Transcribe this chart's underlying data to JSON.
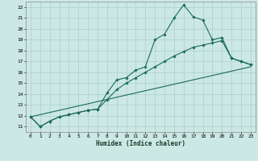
{
  "xlabel": "Humidex (Indice chaleur)",
  "background_color": "#cce8e4",
  "grid_color": "#aacfcb",
  "line_color": "#1a6b5a",
  "xlim": [
    -0.5,
    23.5
  ],
  "ylim": [
    10.5,
    22.5
  ],
  "xticks": [
    0,
    1,
    2,
    3,
    4,
    5,
    6,
    7,
    8,
    9,
    10,
    11,
    12,
    13,
    14,
    15,
    16,
    17,
    18,
    19,
    20,
    21,
    22,
    23
  ],
  "yticks": [
    11,
    12,
    13,
    14,
    15,
    16,
    17,
    18,
    19,
    20,
    21,
    22
  ],
  "line1_x": [
    0,
    1,
    2,
    3,
    4,
    5,
    6,
    7,
    8,
    9,
    10,
    11,
    12,
    13,
    14,
    15,
    16,
    17,
    18,
    19,
    20,
    21,
    22,
    23
  ],
  "line1_y": [
    11.9,
    11.0,
    11.5,
    11.9,
    12.1,
    12.3,
    12.5,
    12.6,
    14.1,
    15.3,
    15.5,
    16.2,
    16.5,
    19.0,
    19.5,
    21.0,
    22.2,
    21.1,
    20.8,
    19.0,
    19.2,
    17.3,
    17.0,
    16.7
  ],
  "line2_x": [
    0,
    1,
    2,
    3,
    4,
    5,
    6,
    7,
    8,
    9,
    10,
    11,
    12,
    13,
    14,
    15,
    16,
    17,
    18,
    19,
    20,
    21,
    22,
    23
  ],
  "line2_y": [
    11.9,
    11.0,
    11.5,
    11.9,
    12.1,
    12.3,
    12.5,
    12.6,
    13.5,
    14.4,
    15.0,
    15.5,
    16.0,
    16.5,
    17.0,
    17.5,
    17.9,
    18.3,
    18.5,
    18.7,
    18.9,
    17.3,
    17.0,
    16.7
  ],
  "line3_x": [
    0,
    23
  ],
  "line3_y": [
    11.9,
    16.5
  ],
  "xlabel_fontsize": 5.5,
  "tick_fontsize": 4.5,
  "line_width": 0.8,
  "marker_size": 1.8
}
